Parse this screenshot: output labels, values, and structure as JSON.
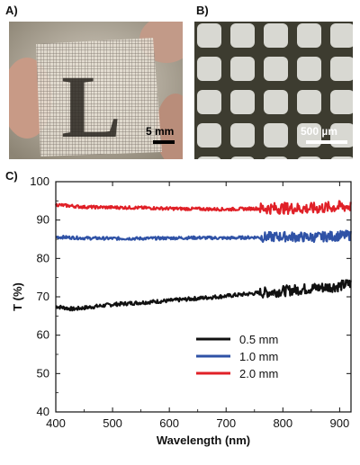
{
  "panels": {
    "a": {
      "label": "A)",
      "scale_label": "5 mm"
    },
    "b": {
      "label": "B)",
      "scale_label": "500 µm"
    },
    "c": {
      "label": "C)"
    }
  },
  "photo_a": {
    "letter": "L"
  },
  "colors": {
    "black": "#111111",
    "blue": "#2f52a6",
    "red": "#e02027"
  },
  "chart_data": {
    "type": "line",
    "xlabel": "Wavelength (nm)",
    "ylabel": "T (%)",
    "xlim": [
      400,
      920
    ],
    "ylim": [
      40,
      100
    ],
    "xticks": [
      400,
      500,
      600,
      700,
      800,
      900
    ],
    "yticks": [
      40,
      50,
      60,
      70,
      80,
      90,
      100
    ],
    "legend_position": "lower-right",
    "series": [
      {
        "name": "0.5 mm",
        "color": "#111111",
        "x": [
          400,
          430,
          460,
          500,
          550,
          600,
          650,
          700,
          750,
          800,
          850,
          900,
          920
        ],
        "y": [
          67.5,
          66.8,
          67.3,
          68.0,
          68.5,
          69.0,
          69.6,
          70.2,
          70.9,
          71.5,
          72.2,
          72.8,
          73.5
        ],
        "noise": 0.5,
        "noise_right": 1.4
      },
      {
        "name": "1.0 mm",
        "color": "#2f52a6",
        "x": [
          400,
          450,
          500,
          550,
          600,
          650,
          700,
          750,
          800,
          850,
          900,
          920
        ],
        "y": [
          85.6,
          85.3,
          85.2,
          85.2,
          85.3,
          85.4,
          85.3,
          85.5,
          85.7,
          85.5,
          85.9,
          86.0
        ],
        "noise": 0.4,
        "noise_right": 1.3
      },
      {
        "name": "2.0 mm",
        "color": "#e02027",
        "x": [
          400,
          450,
          500,
          550,
          600,
          650,
          700,
          750,
          800,
          850,
          900,
          920
        ],
        "y": [
          94.0,
          93.4,
          93.3,
          93.2,
          93.0,
          92.9,
          92.8,
          93.0,
          93.1,
          93.0,
          93.5,
          93.6
        ],
        "noise": 0.4,
        "noise_right": 1.5
      }
    ]
  }
}
